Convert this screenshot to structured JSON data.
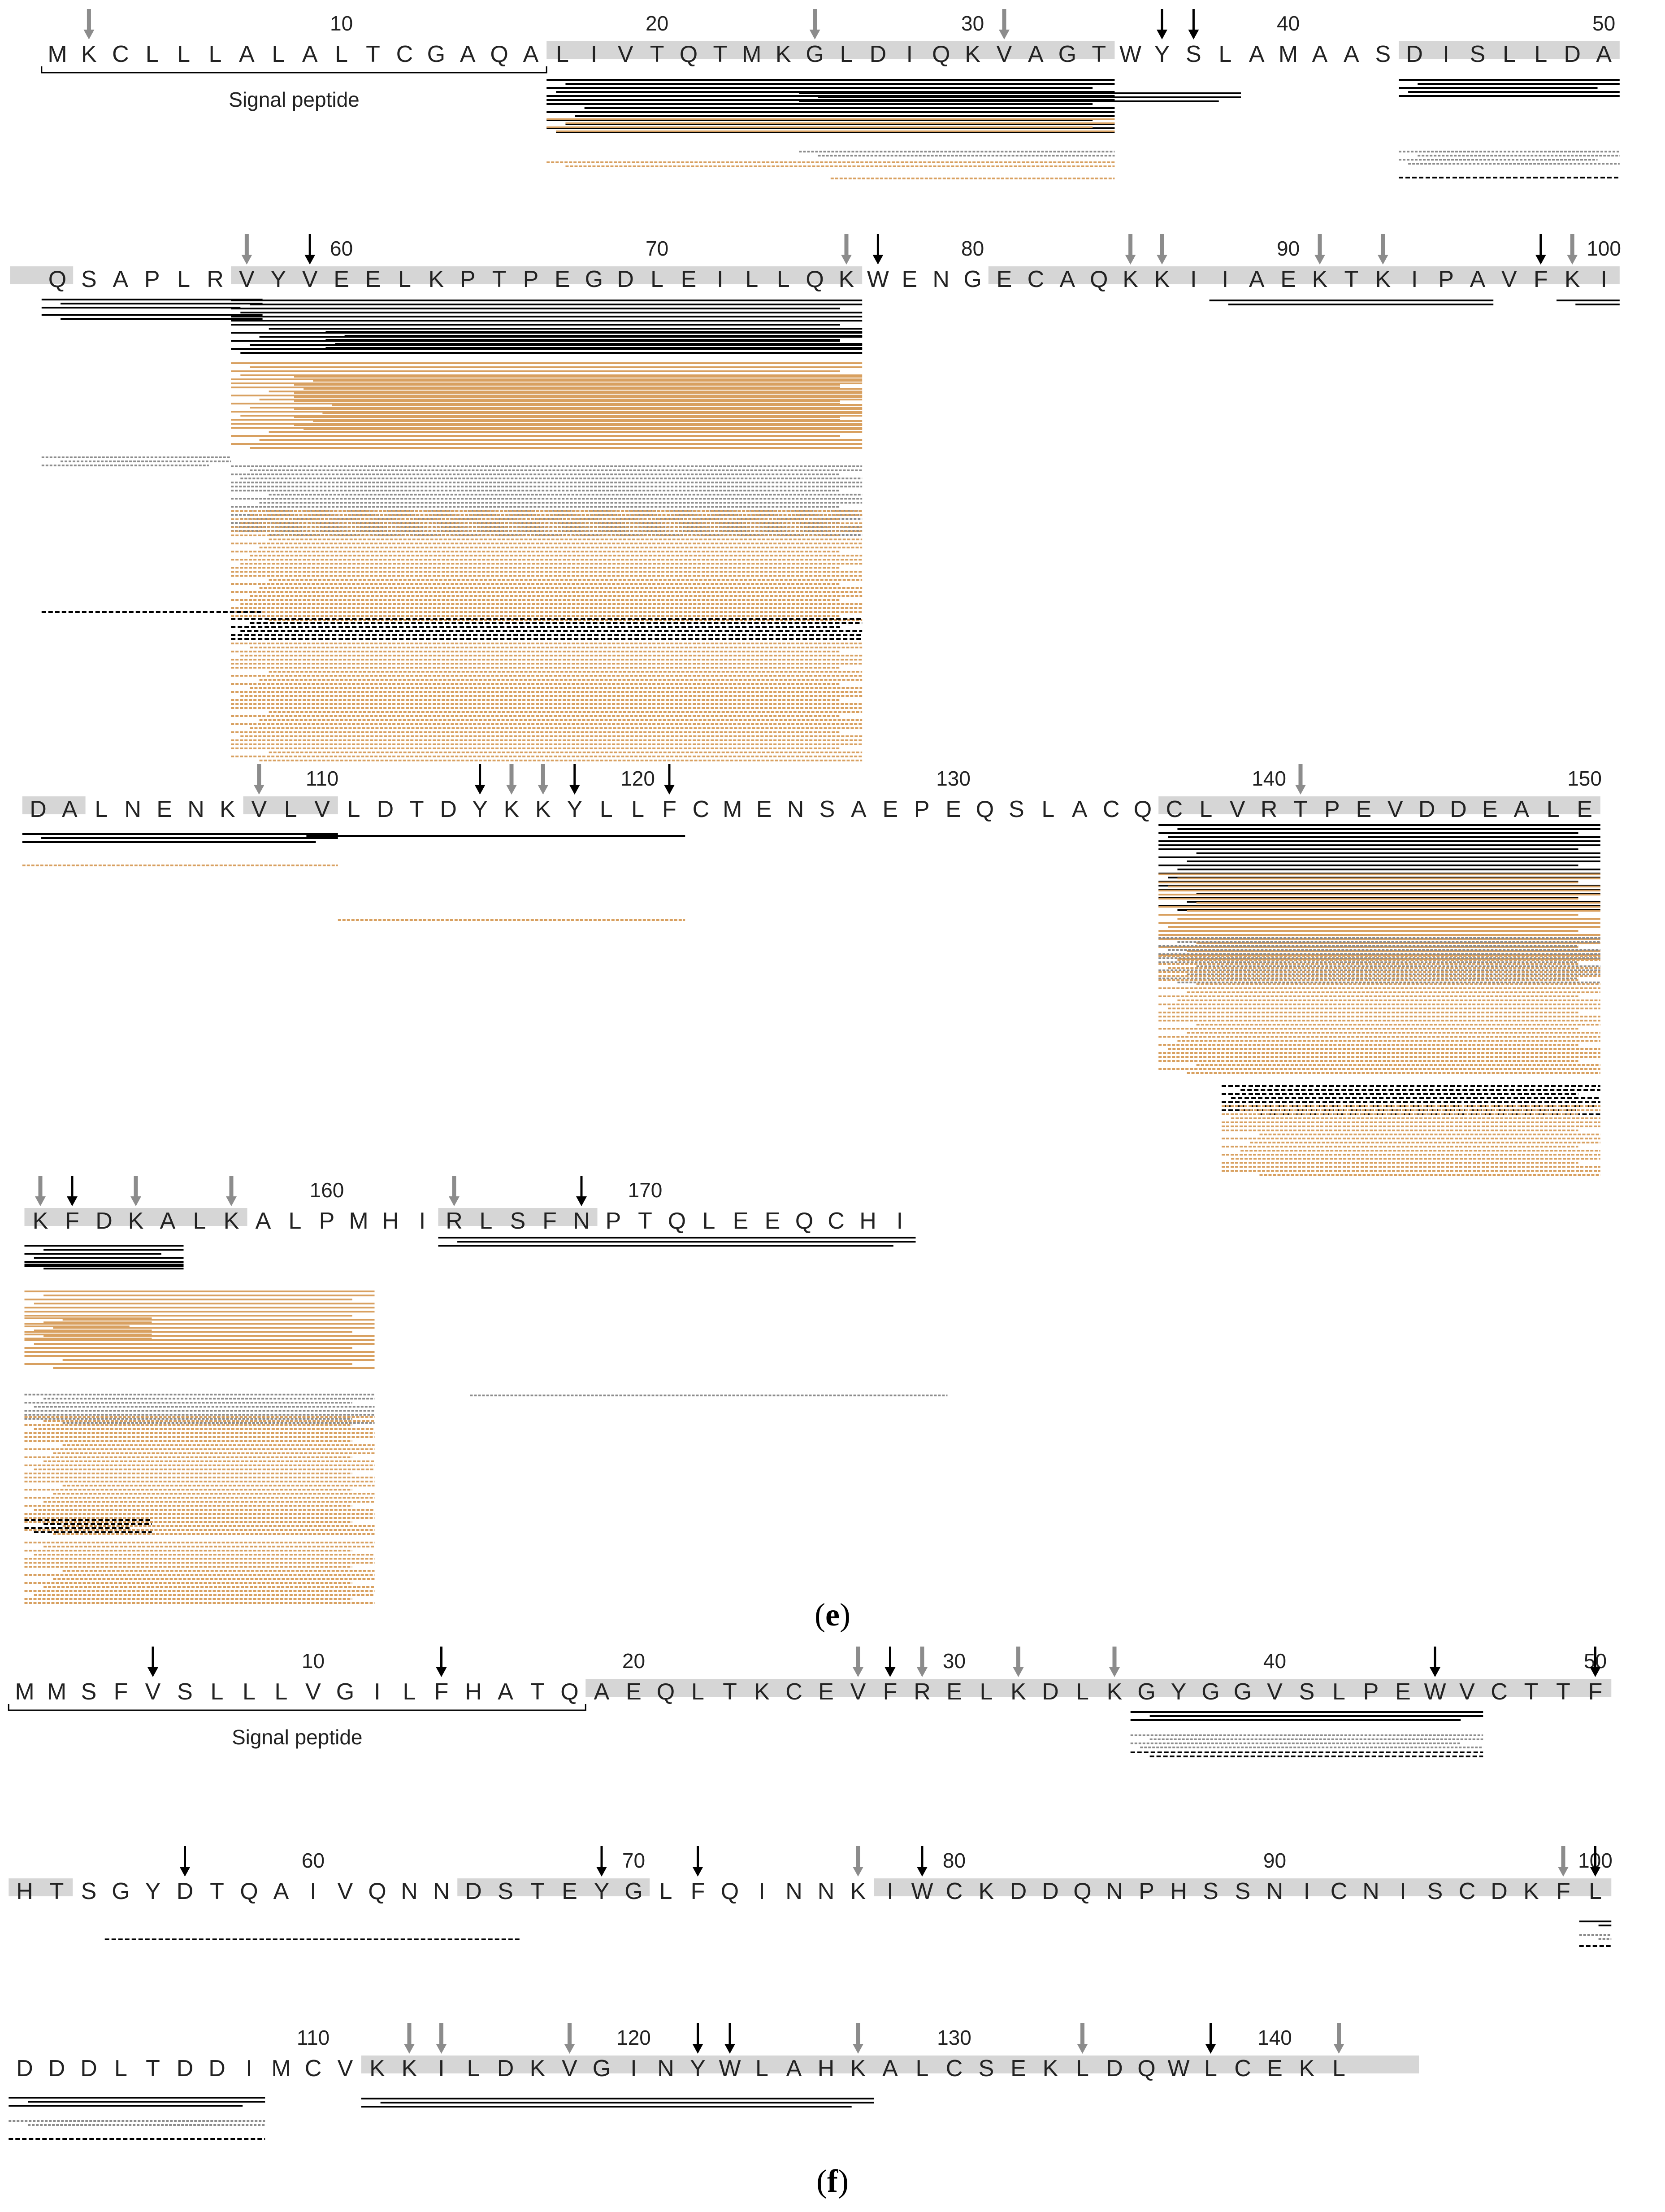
{
  "panels": [
    {
      "id": "e",
      "caption": "e",
      "signal_label": "Signal peptide",
      "rows": [
        {
          "start": 1,
          "residues": "MKCLLLALALTCGAQALIVTQTMKGLDIQKVAGTWYSLAMAASDISLLDA",
          "numbers": [
            "10",
            "20",
            "30",
            "40",
            "50"
          ]
        },
        {
          "start": 51,
          "residues": "QSAPLRVYVEELKPTPEGDLEILLQKWENGECAQKKIIAEKTKIPAVFKI",
          "numbers": [
            "60",
            "70",
            "80",
            "90",
            "100"
          ]
        },
        {
          "start": 101,
          "residues": "DALNENKVLVLDTDYKKYLLFCMENSAEPEQSLACQCLVRTPEVDDEALE",
          "numbers": [
            "110",
            "120",
            "130",
            "140",
            "150"
          ]
        },
        {
          "start": 151,
          "residues": "KFDKALKALPMHIRLSFNPTQLEEQCHI",
          "numbers": [
            "160",
            "170"
          ]
        }
      ]
    },
    {
      "id": "f",
      "caption": "f",
      "signal_label": "Signal peptide",
      "rows": [
        {
          "start": 1,
          "residues": "MMSFVSLLLVGILFHATQAEQLTKCEVFRELKDLKGYGGVSLPEWVCTTF",
          "numbers": [
            "10",
            "20",
            "30",
            "40",
            "50"
          ]
        },
        {
          "start": 51,
          "residues": "HTSGYDTQAIVQNNDSTEYGLFQINNKIWCKDDQNPHSSNICNISCDKFL",
          "numbers": [
            "60",
            "70",
            "80",
            "90",
            "100"
          ]
        },
        {
          "start": 101,
          "residues": "DDDLTDDIMCVKKILDKVGINYWLAHKALCSEKLDQWLCEKL",
          "numbers": [
            "110",
            "120",
            "130",
            "140"
          ]
        }
      ]
    }
  ],
  "colors": {
    "black": "#000000",
    "gray": "#8c8c8c",
    "orange": "#d8a060",
    "shade": "#d6d6d6"
  }
}
